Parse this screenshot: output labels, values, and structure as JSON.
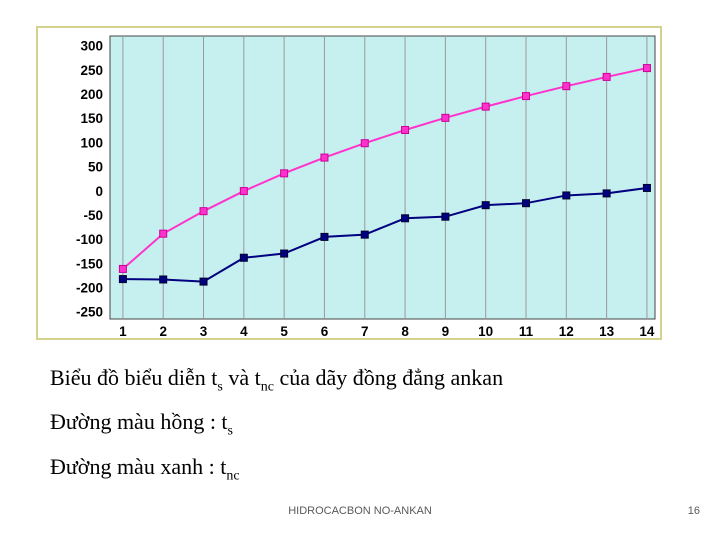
{
  "chart_data": {
    "type": "line",
    "title": "",
    "x": [
      1,
      2,
      3,
      4,
      5,
      6,
      7,
      8,
      9,
      10,
      11,
      12,
      13,
      14
    ],
    "series": [
      {
        "key": "ts",
        "name": "ts (pink line)",
        "color": "#ff33cc",
        "marker_outline": "#cc0099",
        "values": [
          -161.5,
          -88.6,
          -42.1,
          -0.5,
          36.1,
          68.7,
          98.4,
          125.7,
          150.8,
          174,
          195.8,
          216.3,
          235.4,
          253.7
        ]
      },
      {
        "key": "tnc",
        "name": "tnc (dark blue line)",
        "color": "#000080",
        "marker_outline": "#000030",
        "values": [
          -182.5,
          -183.3,
          -187.7,
          -138.4,
          -129.7,
          -95.3,
          -90.6,
          -56.8,
          -53.5,
          -29.7,
          -25.6,
          -9.6,
          -5.4,
          5.9
        ]
      }
    ],
    "x_axis": {
      "ticks": [
        1,
        2,
        3,
        4,
        5,
        6,
        7,
        8,
        9,
        10,
        11,
        12,
        13,
        14
      ],
      "plot_min": 0.68,
      "plot_max": 14.2
    },
    "y_axis": {
      "ticks": [
        300,
        250,
        200,
        150,
        100,
        50,
        0,
        -50,
        -100,
        -150,
        -200,
        -250
      ],
      "plot_min": -265,
      "plot_max": 320
    },
    "colors": {
      "plot_bg": "#c6efef",
      "grid": "#9a9a9a",
      "frame_border": "#d2d28c"
    },
    "grid": "vertical",
    "legend": "none"
  },
  "caption": {
    "line1": [
      "Biểu đồ biểu diễn t",
      "s",
      " và t",
      "nc",
      " của dãy đồng đẳng ankan"
    ],
    "line2": [
      "Đường màu hồng : t",
      "s"
    ],
    "line3": [
      "Đường màu xanh : t",
      "nc"
    ]
  },
  "footer": {
    "title": "HIDROCACBON NO-ANKAN",
    "page": "16"
  }
}
